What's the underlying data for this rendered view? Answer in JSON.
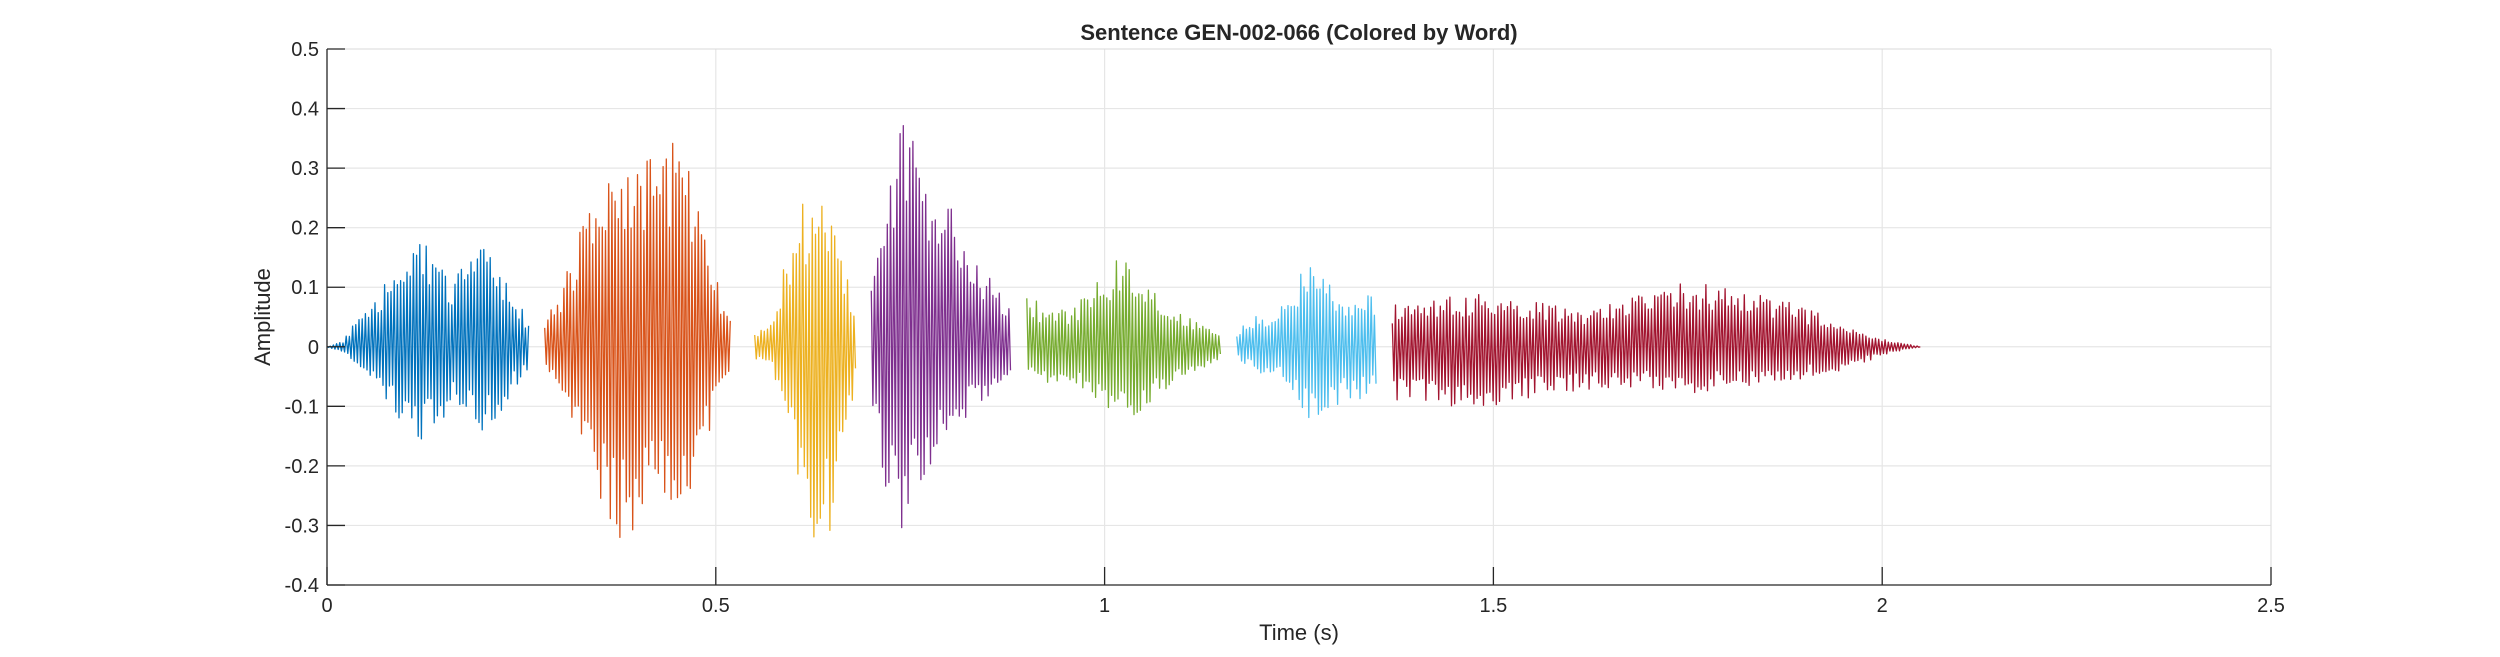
{
  "chart_data": {
    "type": "line",
    "title": "Sentence GEN-002-066 (Colored by Word)",
    "xlabel": "Time (s)",
    "ylabel": "Amplitude",
    "xlim": [
      0,
      2.5
    ],
    "ylim": [
      -0.4,
      0.5
    ],
    "xticks": [
      0,
      0.5,
      1,
      1.5,
      2,
      2.5
    ],
    "xtick_labels": [
      "0",
      "0.5",
      "1",
      "1.5",
      "2",
      "2.5"
    ],
    "yticks": [
      -0.4,
      -0.3,
      -0.2,
      -0.1,
      0,
      0.1,
      0.2,
      0.3,
      0.4,
      0.5
    ],
    "ytick_labels": [
      "-0.4",
      "-0.3",
      "-0.2",
      "-0.1",
      "0",
      "0.1",
      "0.2",
      "0.3",
      "0.4",
      "0.5"
    ],
    "grid": true,
    "legend": "none",
    "series": [
      {
        "color": "#0072BD",
        "segments": [
          {
            "x": 0.0,
            "y": [
              0,
              0
            ]
          },
          {
            "x": 0.02,
            "y": [
              -0.01,
              0.01
            ]
          },
          {
            "x": 0.04,
            "y": [
              -0.04,
              0.05
            ]
          },
          {
            "x": 0.06,
            "y": [
              -0.05,
              0.07
            ]
          },
          {
            "x": 0.08,
            "y": [
              -0.1,
              0.12
            ]
          },
          {
            "x": 0.1,
            "y": [
              -0.15,
              0.18
            ]
          },
          {
            "x": 0.12,
            "y": [
              -0.17,
              0.2
            ]
          },
          {
            "x": 0.14,
            "y": [
              -0.14,
              0.16
            ]
          },
          {
            "x": 0.16,
            "y": [
              -0.1,
              0.11
            ]
          },
          {
            "x": 0.18,
            "y": [
              -0.12,
              0.15
            ]
          },
          {
            "x": 0.2,
            "y": [
              -0.15,
              0.17
            ]
          },
          {
            "x": 0.22,
            "y": [
              -0.12,
              0.14
            ]
          },
          {
            "x": 0.24,
            "y": [
              -0.07,
              0.08
            ]
          },
          {
            "x": 0.26,
            "y": [
              -0.04,
              0.05
            ]
          }
        ]
      },
      {
        "color": "#D95319",
        "segments": [
          {
            "x": 0.28,
            "y": [
              -0.04,
              0.05
            ]
          },
          {
            "x": 0.3,
            "y": [
              -0.08,
              0.1
            ]
          },
          {
            "x": 0.32,
            "y": [
              -0.15,
              0.18
            ]
          },
          {
            "x": 0.34,
            "y": [
              -0.22,
              0.24
            ]
          },
          {
            "x": 0.36,
            "y": [
              -0.3,
              0.3
            ]
          },
          {
            "x": 0.38,
            "y": [
              -0.34,
              0.33
            ]
          },
          {
            "x": 0.4,
            "y": [
              -0.31,
              0.35
            ]
          },
          {
            "x": 0.42,
            "y": [
              -0.28,
              0.32
            ]
          },
          {
            "x": 0.44,
            "y": [
              -0.29,
              0.36
            ]
          },
          {
            "x": 0.46,
            "y": [
              -0.3,
              0.34
            ]
          },
          {
            "x": 0.48,
            "y": [
              -0.22,
              0.26
            ]
          },
          {
            "x": 0.5,
            "y": [
              -0.1,
              0.12
            ]
          },
          {
            "x": 0.52,
            "y": [
              -0.03,
              0.04
            ]
          }
        ]
      },
      {
        "color": "#EDB120",
        "segments": [
          {
            "x": 0.55,
            "y": [
              -0.02,
              0.02
            ]
          },
          {
            "x": 0.57,
            "y": [
              -0.03,
              0.04
            ]
          },
          {
            "x": 0.59,
            "y": [
              -0.12,
              0.15
            ]
          },
          {
            "x": 0.61,
            "y": [
              -0.26,
              0.24
            ]
          },
          {
            "x": 0.63,
            "y": [
              -0.37,
              0.25
            ]
          },
          {
            "x": 0.65,
            "y": [
              -0.3,
              0.24
            ]
          },
          {
            "x": 0.67,
            "y": [
              -0.15,
              0.12
            ]
          },
          {
            "x": 0.68,
            "y": [
              -0.05,
              0.05
            ]
          }
        ]
      },
      {
        "color": "#7E2F8E",
        "segments": [
          {
            "x": 0.7,
            "y": [
              -0.12,
              0.14
            ]
          },
          {
            "x": 0.72,
            "y": [
              -0.25,
              0.3
            ]
          },
          {
            "x": 0.74,
            "y": [
              -0.31,
              0.4
            ]
          },
          {
            "x": 0.76,
            "y": [
              -0.25,
              0.32
            ]
          },
          {
            "x": 0.78,
            "y": [
              -0.2,
              0.3
            ]
          },
          {
            "x": 0.8,
            "y": [
              -0.16,
              0.28
            ]
          },
          {
            "x": 0.82,
            "y": [
              -0.12,
              0.2
            ]
          },
          {
            "x": 0.84,
            "y": [
              -0.1,
              0.15
            ]
          },
          {
            "x": 0.86,
            "y": [
              -0.08,
              0.1
            ]
          },
          {
            "x": 0.88,
            "y": [
              -0.05,
              0.06
            ]
          }
        ]
      },
      {
        "color": "#77AC30",
        "segments": [
          {
            "x": 0.9,
            "y": [
              -0.06,
              0.09
            ]
          },
          {
            "x": 0.92,
            "y": [
              -0.06,
              0.07
            ]
          },
          {
            "x": 0.94,
            "y": [
              -0.06,
              0.06
            ]
          },
          {
            "x": 0.96,
            "y": [
              -0.07,
              0.07
            ]
          },
          {
            "x": 0.98,
            "y": [
              -0.09,
              0.1
            ]
          },
          {
            "x": 1.0,
            "y": [
              -0.11,
              0.13
            ]
          },
          {
            "x": 1.02,
            "y": [
              -0.13,
              0.15
            ]
          },
          {
            "x": 1.04,
            "y": [
              -0.12,
              0.13
            ]
          },
          {
            "x": 1.06,
            "y": [
              -0.1,
              0.1
            ]
          },
          {
            "x": 1.08,
            "y": [
              -0.08,
              0.08
            ]
          },
          {
            "x": 1.1,
            "y": [
              -0.06,
              0.06
            ]
          },
          {
            "x": 1.12,
            "y": [
              -0.04,
              0.04
            ]
          },
          {
            "x": 1.15,
            "y": [
              -0.02,
              0.02
            ]
          }
        ]
      },
      {
        "color": "#4DBEEE",
        "segments": [
          {
            "x": 1.17,
            "y": [
              -0.02,
              0.03
            ]
          },
          {
            "x": 1.19,
            "y": [
              -0.04,
              0.05
            ]
          },
          {
            "x": 1.21,
            "y": [
              -0.06,
              0.06
            ]
          },
          {
            "x": 1.23,
            "y": [
              -0.05,
              0.07
            ]
          },
          {
            "x": 1.25,
            "y": [
              -0.1,
              0.12
            ]
          },
          {
            "x": 1.27,
            "y": [
              -0.14,
              0.16
            ]
          },
          {
            "x": 1.29,
            "y": [
              -0.12,
              0.12
            ]
          },
          {
            "x": 1.31,
            "y": [
              -0.09,
              0.09
            ]
          },
          {
            "x": 1.33,
            "y": [
              -0.09,
              0.1
            ]
          },
          {
            "x": 1.35,
            "y": [
              -0.08,
              0.09
            ]
          }
        ]
      },
      {
        "color": "#A2142F",
        "segments": [
          {
            "x": 1.37,
            "y": [
              -0.09,
              0.07
            ]
          },
          {
            "x": 1.4,
            "y": [
              -0.09,
              0.08
            ]
          },
          {
            "x": 1.43,
            "y": [
              -0.1,
              0.08
            ]
          },
          {
            "x": 1.46,
            "y": [
              -0.1,
              0.09
            ]
          },
          {
            "x": 1.49,
            "y": [
              -0.11,
              0.09
            ]
          },
          {
            "x": 1.52,
            "y": [
              -0.1,
              0.09
            ]
          },
          {
            "x": 1.55,
            "y": [
              -0.09,
              0.08
            ]
          },
          {
            "x": 1.58,
            "y": [
              -0.08,
              0.07
            ]
          },
          {
            "x": 1.61,
            "y": [
              -0.08,
              0.06
            ]
          },
          {
            "x": 1.64,
            "y": [
              -0.07,
              0.07
            ]
          },
          {
            "x": 1.67,
            "y": [
              -0.07,
              0.08
            ]
          },
          {
            "x": 1.7,
            "y": [
              -0.07,
              0.09
            ]
          },
          {
            "x": 1.73,
            "y": [
              -0.08,
              0.11
            ]
          },
          {
            "x": 1.76,
            "y": [
              -0.08,
              0.11
            ]
          },
          {
            "x": 1.79,
            "y": [
              -0.07,
              0.1
            ]
          },
          {
            "x": 1.82,
            "y": [
              -0.07,
              0.1
            ]
          },
          {
            "x": 1.85,
            "y": [
              -0.06,
              0.09
            ]
          },
          {
            "x": 1.88,
            "y": [
              -0.06,
              0.08
            ]
          },
          {
            "x": 1.91,
            "y": [
              -0.05,
              0.06
            ]
          },
          {
            "x": 1.94,
            "y": [
              -0.05,
              0.05
            ]
          },
          {
            "x": 1.97,
            "y": [
              -0.03,
              0.03
            ]
          },
          {
            "x": 2.0,
            "y": [
              -0.015,
              0.015
            ]
          },
          {
            "x": 2.03,
            "y": [
              -0.005,
              0.005
            ]
          },
          {
            "x": 2.05,
            "y": [
              0,
              0
            ]
          }
        ]
      }
    ]
  }
}
